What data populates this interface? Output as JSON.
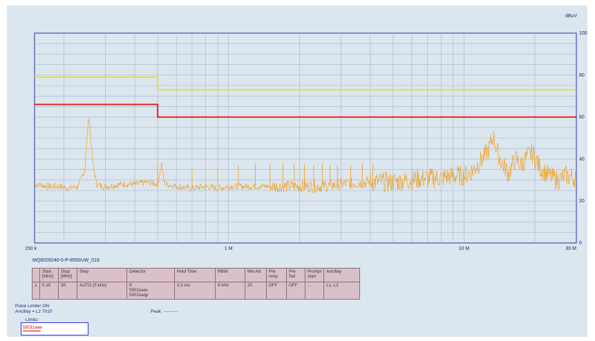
{
  "chart_data": {
    "type": "line",
    "xscale": "log",
    "xlim": [
      0.15,
      30
    ],
    "ylim": [
      0,
      100
    ],
    "y_unit": "dBuV",
    "x_ticks": [
      {
        "value": 0.15,
        "label": "150 k"
      },
      {
        "value": 1,
        "label": "1 M"
      },
      {
        "value": 10,
        "label": "10 M"
      },
      {
        "value": 30,
        "label": "30 M"
      }
    ],
    "y_ticks": [
      0,
      20,
      40,
      60,
      80,
      100
    ],
    "grid": true,
    "series": [
      {
        "name": "Peak",
        "color": "#f0a020",
        "kind": "trace",
        "x": [
          0.15,
          0.17,
          0.19,
          0.21,
          0.23,
          0.245,
          0.255,
          0.265,
          0.275,
          0.29,
          0.31,
          0.35,
          0.4,
          0.45,
          0.5,
          0.52,
          0.53,
          0.54,
          0.6,
          0.7,
          0.8,
          0.9,
          1.0,
          1.2,
          1.5,
          2.0,
          2.5,
          3.0,
          4.0,
          5.0,
          6.0,
          7.0,
          8.0,
          9.0,
          10.0,
          11.0,
          12.0,
          12.8,
          13.3,
          13.8,
          14.5,
          15.5,
          16.5,
          17.5,
          18.5,
          19.5,
          21.0,
          23.0,
          25.0,
          27.0,
          30.0
        ],
        "y": [
          28,
          27,
          27,
          26,
          27,
          35,
          61,
          38,
          28,
          27,
          27,
          28,
          28,
          29,
          28,
          38,
          30,
          28,
          27,
          26,
          27,
          26,
          27,
          27,
          27,
          27,
          27,
          28,
          29,
          29,
          30,
          31,
          31,
          32,
          32,
          35,
          40,
          45,
          51,
          44,
          38,
          33,
          40,
          37,
          41,
          43,
          36,
          32,
          30,
          32,
          31
        ]
      },
      {
        "name": "",
        "color": "#e0e040",
        "kind": "limit-yellow",
        "x": [
          0.15,
          0.5,
          0.5,
          30
        ],
        "y": [
          79,
          79,
          73,
          73
        ]
      },
      {
        "name": "55011aav",
        "color": "#e02020",
        "kind": "limit-red",
        "x": [
          0.15,
          0.5,
          0.5,
          30
        ],
        "y": [
          66,
          66,
          60,
          60
        ]
      }
    ],
    "spurs": [
      {
        "x": 0.5,
        "y": 38
      },
      {
        "x": 0.7,
        "y": 35
      },
      {
        "x": 0.9,
        "y": 36
      },
      {
        "x": 1.1,
        "y": 37
      },
      {
        "x": 1.3,
        "y": 38
      },
      {
        "x": 1.5,
        "y": 38
      },
      {
        "x": 1.7,
        "y": 38
      },
      {
        "x": 1.9,
        "y": 38
      },
      {
        "x": 2.1,
        "y": 38
      },
      {
        "x": 2.3,
        "y": 37
      },
      {
        "x": 2.5,
        "y": 38
      },
      {
        "x": 2.7,
        "y": 37
      },
      {
        "x": 2.9,
        "y": 37
      },
      {
        "x": 3.3,
        "y": 37
      },
      {
        "x": 3.7,
        "y": 38
      },
      {
        "x": 4.1,
        "y": 38
      }
    ]
  },
  "trace_id": "MQ6028240-5-P-8550UW_019",
  "settings_table": {
    "headers": [
      "",
      "Start [MHz]",
      "Stop [MHz]",
      "Step",
      "Detector",
      "Hold Time",
      "RBW",
      "Min Att",
      "Pre Amp",
      "Pre Sel",
      "Prompt start",
      "Ancillay"
    ],
    "row": [
      "1",
      "0.15",
      "30",
      "AUTO (5 kHz)",
      "P\n55011aav\n55011aqp",
      "2.5 ms",
      "9 kHz",
      "20",
      "OFF",
      "OFF",
      "...",
      "L1, L2"
    ]
  },
  "info": {
    "pulse_limiter": "Pulse Limiter ON",
    "ancillary": "Ancillay = L2 7010",
    "legend_peak": "Peak",
    "limits_title": "Limits:",
    "limits_item": "55011aav"
  }
}
